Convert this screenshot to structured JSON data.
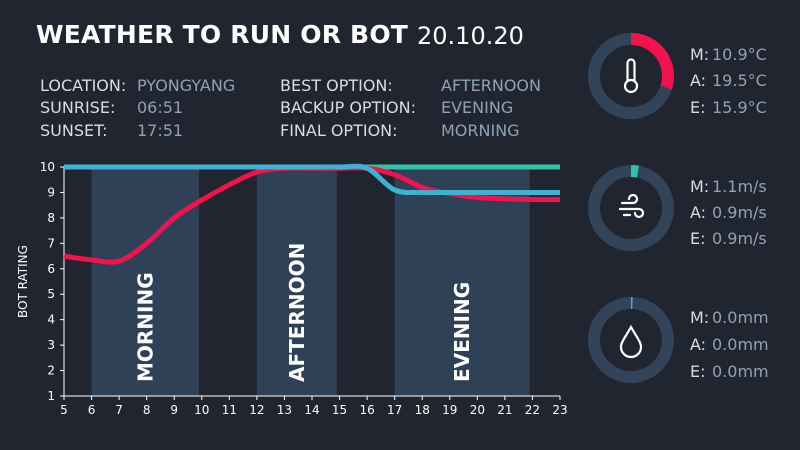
{
  "header": {
    "title": "WEATHER TO RUN OR BOT",
    "date": "20.10.20"
  },
  "info": {
    "location_label": "LOCATION:",
    "location": "PYONGYANG",
    "sunrise_label": "SUNRISE:",
    "sunrise": "06:51",
    "sunset_label": "SUNSET:",
    "sunset": "17:51",
    "best_label": "BEST OPTION:",
    "best": "AFTERNOON",
    "backup_label": "BACKUP OPTION:",
    "backup": "EVENING",
    "final_label": "FINAL OPTION:",
    "final": "MORNING"
  },
  "gauges": [
    {
      "icon": "thermometer-icon",
      "color": "#f0134d",
      "fraction": 0.3,
      "m_label": "M:",
      "m": "10.9°C",
      "a_label": "A:",
      "a": "19.5°C",
      "e_label": "E:",
      "e": "15.9°C"
    },
    {
      "icon": "wind-icon",
      "color": "#2ec4a2",
      "fraction": 0.03,
      "m_label": "M:",
      "m": "1.1m/s",
      "a_label": "A:",
      "a": "0.9m/s",
      "e_label": "E:",
      "e": "0.9m/s"
    },
    {
      "icon": "water-drop-icon",
      "color": "#40b3d6",
      "fraction": 0.005,
      "m_label": "M:",
      "m": "0.0mm",
      "a_label": "A:",
      "a": "0.0mm",
      "e_label": "E:",
      "e": "0.0mm"
    }
  ],
  "colors": {
    "background": "#21252f",
    "band": "#2e4157",
    "panel": "#31445a"
  },
  "chart_data": {
    "type": "line",
    "ylabel": "BOT RATING",
    "xlabel": "",
    "xlim": [
      5,
      23
    ],
    "ylim": [
      1,
      10
    ],
    "x_ticks": [
      5,
      6,
      7,
      8,
      9,
      10,
      11,
      12,
      13,
      14,
      15,
      16,
      17,
      18,
      19,
      20,
      21,
      22,
      23
    ],
    "y_ticks": [
      1,
      2,
      3,
      4,
      5,
      6,
      7,
      8,
      9,
      10
    ],
    "bands": [
      {
        "label": "MORNING",
        "start": 6,
        "end": 9.9
      },
      {
        "label": "AFTERNOON",
        "start": 12,
        "end": 14.9
      },
      {
        "label": "EVENING",
        "start": 17,
        "end": 21.9
      }
    ],
    "series": [
      {
        "color": "#2ec4a2",
        "x": [
          5,
          6,
          7,
          8,
          9,
          10,
          11,
          12,
          13,
          14,
          15,
          16,
          17,
          18,
          19,
          20,
          21,
          22,
          23
        ],
        "y": [
          10,
          10,
          10,
          10,
          10,
          10,
          10,
          10,
          10,
          10,
          10,
          10,
          10,
          10,
          10,
          10,
          10,
          10,
          10
        ]
      },
      {
        "color": "#f0134d",
        "x": [
          5,
          6,
          7,
          8,
          9,
          10,
          11,
          12,
          13,
          14,
          15,
          16,
          17,
          18,
          19,
          20,
          21,
          22,
          23
        ],
        "y": [
          6.5,
          6.35,
          6.3,
          7.0,
          8.0,
          8.7,
          9.3,
          9.8,
          9.95,
          9.95,
          9.95,
          9.95,
          9.7,
          9.2,
          8.95,
          8.8,
          8.75,
          8.72,
          8.72
        ]
      },
      {
        "color": "#3fb1d3",
        "x": [
          5,
          6,
          7,
          8,
          9,
          10,
          11,
          12,
          13,
          14,
          15,
          16,
          17,
          18,
          19,
          20,
          21,
          22,
          23
        ],
        "y": [
          10,
          10,
          10,
          10,
          10,
          10,
          10,
          10,
          10,
          10,
          10,
          9.95,
          9.1,
          9.0,
          9.0,
          9.0,
          9.0,
          9.0,
          9.0
        ]
      }
    ]
  }
}
